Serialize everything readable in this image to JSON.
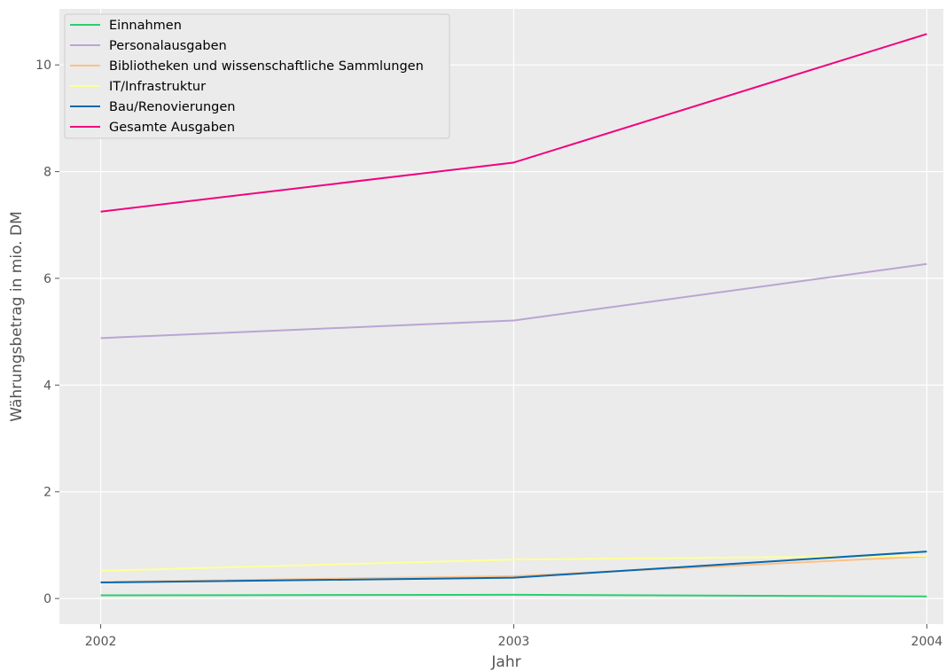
{
  "chart_data": {
    "type": "line",
    "title": "",
    "xlabel": "Jahr",
    "ylabel": "Währungsbetrag in mio. DM",
    "x": [
      2002,
      2003,
      2004
    ],
    "x_ticks": [
      "2002",
      "2003",
      "2004"
    ],
    "y_ticks": [
      "0",
      "2",
      "4",
      "6",
      "8",
      "10"
    ],
    "xlim": [
      2001.9,
      2004.04
    ],
    "ylim": [
      -0.48,
      11.05
    ],
    "grid": true,
    "legend_position": "top-left",
    "series": [
      {
        "name": "Einnahmen",
        "color": "#2ecc71",
        "values": [
          0.06,
          0.07,
          0.04
        ]
      },
      {
        "name": "Personalausgaben",
        "color": "#bba4d3",
        "values": [
          4.88,
          5.21,
          6.27
        ]
      },
      {
        "name": "Bibliotheken und wissenschaftliche Sammlungen",
        "color": "#fdc086",
        "values": [
          0.31,
          0.42,
          0.79
        ]
      },
      {
        "name": "IT/Infrastruktur",
        "color": "#ffff99",
        "values": [
          0.52,
          0.73,
          0.8
        ]
      },
      {
        "name": "Bau/Renovierungen",
        "color": "#0868ac",
        "values": [
          0.3,
          0.39,
          0.88
        ]
      },
      {
        "name": "Gesamte Ausgaben",
        "color": "#f0027f",
        "values": [
          7.25,
          8.17,
          10.58
        ]
      }
    ]
  }
}
